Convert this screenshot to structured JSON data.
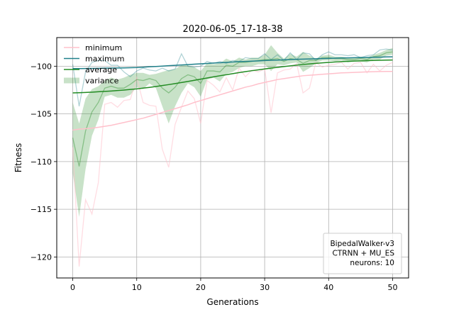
{
  "chart_data": {
    "type": "line",
    "title": "2020-06-05_17-18-38",
    "xlabel": "Generations",
    "ylabel": "Fitness",
    "xlim": [
      -2.5,
      52.5
    ],
    "ylim": [
      -122.2,
      -97.0
    ],
    "xticks": [
      0,
      10,
      20,
      30,
      40,
      50
    ],
    "yticks": [
      -120,
      -115,
      -110,
      -105,
      -100
    ],
    "grid": true,
    "legend_position": "top-left",
    "x": [
      0,
      1,
      2,
      3,
      4,
      5,
      6,
      7,
      8,
      9,
      10,
      11,
      12,
      13,
      14,
      15,
      16,
      17,
      18,
      19,
      20,
      21,
      22,
      23,
      24,
      25,
      26,
      27,
      28,
      29,
      30,
      31,
      32,
      33,
      34,
      35,
      36,
      37,
      38,
      39,
      40,
      41,
      42,
      43,
      44,
      45,
      46,
      47,
      48,
      49,
      50
    ],
    "series": [
      {
        "name": "minimum",
        "kind": "raw+smoothed",
        "color": "#ffc0cb",
        "raw": [
          -108.5,
          -121.0,
          -114.0,
          -115.5,
          -112.2,
          -104.0,
          -103.8,
          -104.3,
          -103.6,
          -103.5,
          -101.2,
          -103.8,
          -104.1,
          -104.2,
          -108.7,
          -110.6,
          -106.1,
          -104.3,
          -102.6,
          -103.4,
          -106.0,
          -101.5,
          -102.0,
          -102.7,
          -101.2,
          -102.5,
          -100.2,
          -101.1,
          -100.4,
          -100.6,
          -100.3,
          -104.9,
          -100.7,
          -100.4,
          -100.3,
          -99.7,
          -102.8,
          -102.3,
          -99.6,
          -100.1,
          -99.9,
          -99.8,
          -99.6,
          -100.3,
          -99.7,
          -99.6,
          -100.7,
          -99.8,
          -100.5,
          -99.9,
          -99.6
        ],
        "smoothed": [
          -106.7,
          -106.6,
          -106.55,
          -106.5,
          -106.4,
          -106.3,
          -106.2,
          -106.05,
          -105.9,
          -105.75,
          -105.6,
          -105.45,
          -105.25,
          -105.05,
          -104.85,
          -104.65,
          -104.45,
          -104.25,
          -104.05,
          -103.8,
          -103.6,
          -103.4,
          -103.2,
          -103.0,
          -102.8,
          -102.6,
          -102.4,
          -102.2,
          -102.05,
          -101.85,
          -101.7,
          -101.55,
          -101.4,
          -101.3,
          -101.2,
          -101.1,
          -101.0,
          -100.95,
          -100.9,
          -100.85,
          -100.8,
          -100.75,
          -100.7,
          -100.68,
          -100.65,
          -100.62,
          -100.6,
          -100.58,
          -100.56,
          -100.55,
          -100.55
        ]
      },
      {
        "name": "maximum",
        "kind": "raw+smoothed",
        "color": "#20808a",
        "raw": [
          -99.8,
          -104.2,
          -100.6,
          -99.6,
          -99.4,
          -99.4,
          -99.9,
          -99.9,
          -100.6,
          -101.1,
          -100.5,
          -100.2,
          -100.4,
          -100.5,
          -100.2,
          -100.5,
          -100.3,
          -98.7,
          -100.0,
          -100.1,
          -100.0,
          -99.5,
          -99.7,
          -99.5,
          -99.7,
          -99.4,
          -99.5,
          -99.1,
          -99.2,
          -99.2,
          -98.7,
          -99.3,
          -98.8,
          -99.4,
          -98.6,
          -99.3,
          -98.6,
          -98.7,
          -99.4,
          -98.8,
          -98.5,
          -98.8,
          -98.8,
          -98.9,
          -98.8,
          -99.1,
          -98.9,
          -98.8,
          -98.3,
          -98.2,
          -98.3
        ],
        "smoothed": [
          -100.25,
          -100.25,
          -100.24,
          -100.23,
          -100.22,
          -100.21,
          -100.2,
          -100.19,
          -100.18,
          -100.16,
          -100.14,
          -100.1,
          -100.06,
          -100.03,
          -99.99,
          -99.95,
          -99.91,
          -99.87,
          -99.83,
          -99.79,
          -99.75,
          -99.71,
          -99.67,
          -99.64,
          -99.6,
          -99.56,
          -99.53,
          -99.5,
          -99.47,
          -99.44,
          -99.41,
          -99.38,
          -99.36,
          -99.33,
          -99.3,
          -99.28,
          -99.26,
          -99.24,
          -99.22,
          -99.2,
          -99.18,
          -99.16,
          -99.14,
          -99.13,
          -99.11,
          -99.1,
          -99.08,
          -99.06,
          -99.05,
          -99.03,
          -99.02
        ]
      },
      {
        "name": "average",
        "kind": "raw+smoothed",
        "color": "#228b22",
        "raw": [
          -107.5,
          -110.5,
          -106.8,
          -104.8,
          -103.8,
          -102.3,
          -102.1,
          -102.3,
          -102.3,
          -101.9,
          -101.4,
          -101.5,
          -101.3,
          -101.5,
          -102.3,
          -102.8,
          -102.2,
          -101.3,
          -100.9,
          -101.1,
          -101.8,
          -100.5,
          -100.5,
          -100.6,
          -99.9,
          -100.0,
          -99.6,
          -99.6,
          -99.5,
          -99.4,
          -99.3,
          -99.3,
          -99.2,
          -99.5,
          -99.2,
          -99.3,
          -99.7,
          -99.4,
          -99.4,
          -99.1,
          -99.1,
          -99.2,
          -99.2,
          -99.3,
          -99.3,
          -99.2,
          -99.3,
          -99.0,
          -98.9,
          -98.6,
          -98.5
        ],
        "smoothed": [
          -102.8,
          -102.78,
          -102.75,
          -102.72,
          -102.68,
          -102.64,
          -102.6,
          -102.55,
          -102.5,
          -102.44,
          -102.38,
          -102.3,
          -102.22,
          -102.13,
          -102.03,
          -101.93,
          -101.82,
          -101.71,
          -101.6,
          -101.48,
          -101.36,
          -101.24,
          -101.12,
          -101.0,
          -100.89,
          -100.78,
          -100.67,
          -100.57,
          -100.47,
          -100.38,
          -100.29,
          -100.2,
          -100.12,
          -100.04,
          -99.96,
          -99.89,
          -99.82,
          -99.76,
          -99.7,
          -99.65,
          -99.6,
          -99.56,
          -99.52,
          -99.49,
          -99.46,
          -99.44,
          -99.42,
          -99.4,
          -99.38,
          -99.36,
          -99.35
        ]
      },
      {
        "name": "variance",
        "kind": "band",
        "color": "#228b22",
        "upper": [
          -103.8,
          -106.0,
          -103.4,
          -102.4,
          -102.1,
          -101.5,
          -101.2,
          -101.4,
          -101.2,
          -100.9,
          -100.7,
          -100.7,
          -100.9,
          -100.8,
          -100.6,
          -100.4,
          -100.3,
          -99.9,
          -99.9,
          -100.1,
          -100.5,
          -99.7,
          -99.8,
          -99.7,
          -99.2,
          -99.5,
          -99.1,
          -99.3,
          -99.1,
          -99.1,
          -98.8,
          -97.8,
          -98.6,
          -99.2,
          -98.7,
          -99.0,
          -98.5,
          -98.9,
          -99.2,
          -98.9,
          -98.8,
          -99.0,
          -99.0,
          -99.1,
          -99.1,
          -99.0,
          -99.1,
          -98.8,
          -98.6,
          -98.3,
          -98.1
        ],
        "lower": [
          -111.2,
          -115.8,
          -110.8,
          -107.3,
          -105.6,
          -103.2,
          -103.0,
          -103.3,
          -103.3,
          -103.0,
          -102.2,
          -102.4,
          -101.8,
          -102.3,
          -104.2,
          -106.0,
          -104.2,
          -102.8,
          -101.8,
          -102.2,
          -103.2,
          -101.4,
          -101.2,
          -101.6,
          -100.8,
          -100.6,
          -100.2,
          -100.0,
          -100.0,
          -99.8,
          -99.8,
          -100.5,
          -99.8,
          -99.9,
          -99.7,
          -99.6,
          -100.6,
          -100.2,
          -99.7,
          -99.4,
          -99.4,
          -99.5,
          -99.4,
          -99.6,
          -99.5,
          -99.5,
          -99.6,
          -99.3,
          -99.3,
          -98.9,
          -98.8
        ]
      }
    ],
    "annotation": {
      "lines": [
        "BipedalWalker-v3",
        "CTRNN + MU_ES",
        "neurons: 10"
      ],
      "position": "bottom-right"
    }
  }
}
